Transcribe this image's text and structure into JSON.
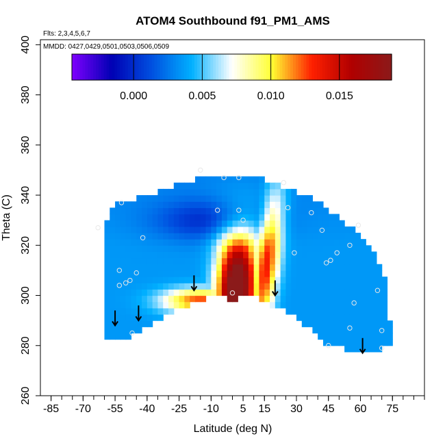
{
  "chart_data": {
    "type": "heatmap",
    "title": "ATOM4 Southbound f91_PM1_AMS",
    "flights_note": "Flts: 2,3,4,5,6,7",
    "dates_note": "MMDD: 0427,0429,0501,0503,0506,0509",
    "xlabel": "Latitude (deg N)",
    "ylabel": "Theta (C)",
    "xlim": [
      -90,
      90
    ],
    "ylim": [
      260,
      402
    ],
    "x_ticks": [
      -85,
      -70,
      -55,
      -40,
      -25,
      -10,
      5,
      15,
      30,
      45,
      60,
      75
    ],
    "x_tick_labels": [
      "-85",
      "-70",
      "-55",
      "-40",
      "-25",
      "-10",
      "5",
      "15",
      "30",
      "45",
      "60",
      "75"
    ],
    "y_ticks": [
      260,
      280,
      300,
      320,
      340,
      360,
      380,
      400
    ],
    "y_tick_labels": [
      "260",
      "280",
      "300",
      "320",
      "340",
      "360",
      "380",
      "400"
    ],
    "colorbar": {
      "range": [
        -0.0045,
        0.0188
      ],
      "ticks": [
        0.0,
        0.005,
        0.01,
        0.015
      ],
      "tick_labels": [
        "0.000",
        "0.005",
        "0.010",
        "0.015"
      ],
      "colors": [
        "#7f00ff",
        "#0000b3",
        "#0050e0",
        "#00b0ff",
        "#ffffff",
        "#ffff33",
        "#ff2000",
        "#b00000",
        "#8b1a1a"
      ]
    },
    "field": {
      "lower_boundary": [
        [
          -55,
          282
        ],
        [
          -45,
          285
        ],
        [
          -35,
          290
        ],
        [
          -25,
          295
        ],
        [
          -10,
          300
        ],
        [
          0,
          299
        ],
        [
          10,
          300
        ],
        [
          20,
          296
        ],
        [
          30,
          292
        ],
        [
          40,
          284
        ],
        [
          45,
          280
        ],
        [
          55,
          279
        ],
        [
          65,
          278
        ],
        [
          72,
          280
        ]
      ],
      "upper_boundary": [
        [
          -60,
          327
        ],
        [
          -55,
          336
        ],
        [
          -45,
          338
        ],
        [
          -35,
          341
        ],
        [
          -25,
          344
        ],
        [
          -10,
          347
        ],
        [
          0,
          348
        ],
        [
          10,
          347
        ],
        [
          20,
          344
        ],
        [
          30,
          341
        ],
        [
          40,
          337
        ],
        [
          50,
          330
        ],
        [
          58,
          326
        ],
        [
          65,
          318
        ],
        [
          70,
          310
        ],
        [
          73,
          300
        ],
        [
          73,
          290
        ]
      ],
      "peak_value": 0.018,
      "peak_location": {
        "lat": 2,
        "theta": 303
      }
    },
    "sample_points": [
      [
        -63,
        327
      ],
      [
        -52,
        337
      ],
      [
        -42,
        323
      ],
      [
        -53,
        310
      ],
      [
        -50,
        305
      ],
      [
        -48,
        306
      ],
      [
        -45,
        309
      ],
      [
        -53,
        304
      ],
      [
        -47,
        285
      ],
      [
        -15,
        350
      ],
      [
        -7,
        334
      ],
      [
        -4,
        347
      ],
      [
        3,
        347
      ],
      [
        3,
        334
      ],
      [
        5,
        330
      ],
      [
        0,
        301
      ],
      [
        24,
        345
      ],
      [
        26,
        335
      ],
      [
        29,
        317
      ],
      [
        37,
        333
      ],
      [
        42,
        326
      ],
      [
        44,
        313
      ],
      [
        46,
        314
      ],
      [
        49,
        317
      ],
      [
        55,
        320
      ],
      [
        59,
        328
      ],
      [
        68,
        302
      ],
      [
        57,
        297
      ],
      [
        70,
        286
      ],
      [
        55,
        287
      ],
      [
        45,
        280
      ],
      [
        70,
        279
      ]
    ],
    "arrows": [
      {
        "lat": -55,
        "theta": 288
      },
      {
        "lat": -44,
        "theta": 290
      },
      {
        "lat": -18,
        "theta": 302
      },
      {
        "lat": 20,
        "theta": 300
      },
      {
        "lat": 61,
        "theta": 277
      }
    ]
  }
}
